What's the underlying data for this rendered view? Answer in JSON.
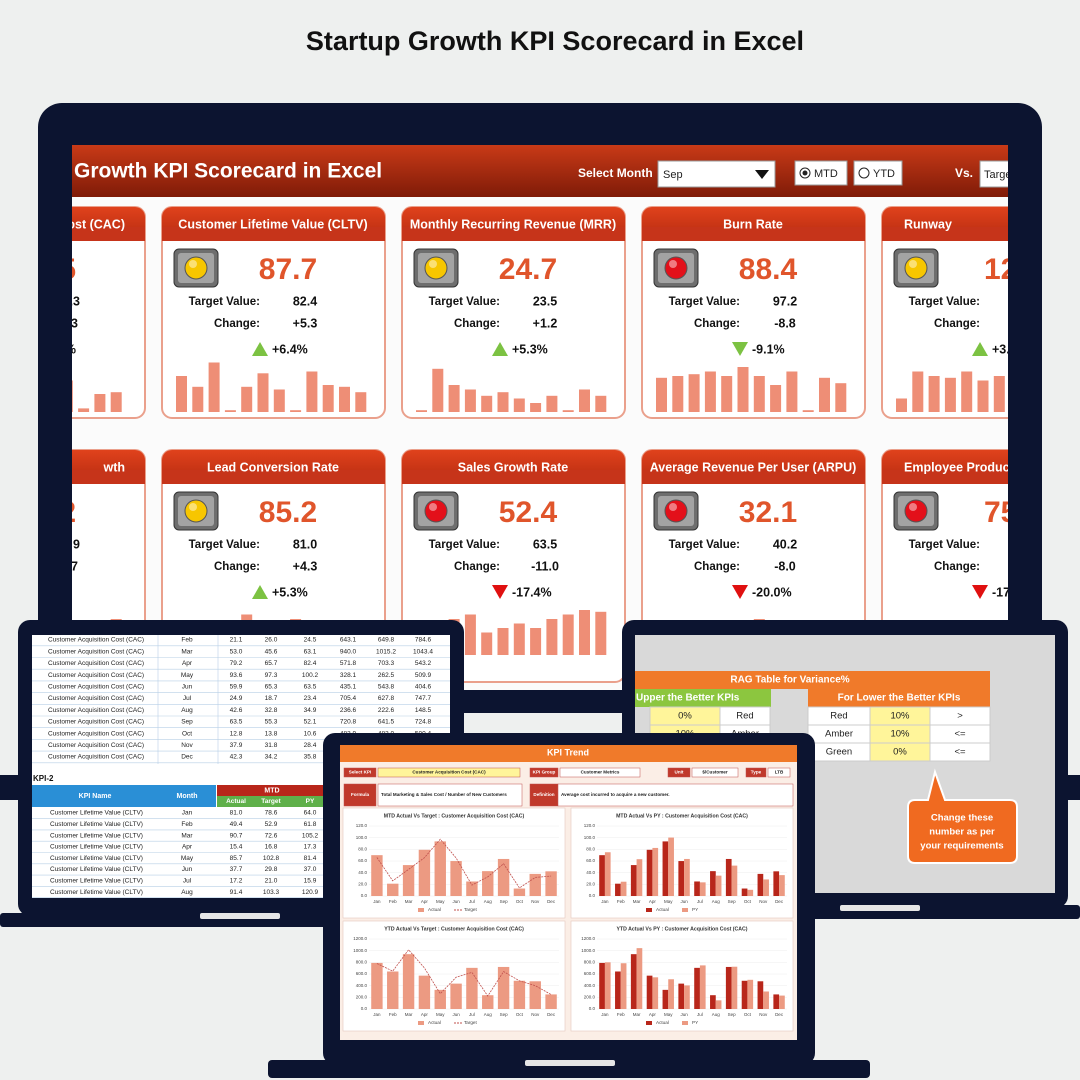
{
  "title": "Startup Growth KPI Scorecard in Excel",
  "dashboard": {
    "title": "Growth KPI Scorecard in Excel",
    "select_month_label": "Select Month",
    "month": "Sep",
    "mtd": "MTD",
    "ytd": "YTD",
    "vs_label": "Vs.",
    "vs_value": "Targe",
    "target_label": "Target Value:",
    "change_label": "Change:",
    "rows": [
      [
        {
          "name": "ost (CAC)",
          "value": "5",
          "target": ".3",
          "change": "3",
          "change_pct": "%",
          "trend": [
            30,
            35,
            4,
            20,
            22
          ]
        },
        {
          "name": "Customer Lifetime Value (CLTV)",
          "status": "amber",
          "value": "87.7",
          "target": "82.4",
          "change": "+5.3",
          "change_pct": "+6.4%",
          "direction": "up",
          "good": true,
          "trend": [
            40,
            28,
            55,
            2,
            28,
            43,
            25,
            2,
            45,
            30,
            28,
            22
          ]
        },
        {
          "name": "Monthly Recurring Revenue (MRR)",
          "status": "amber",
          "value": "24.7",
          "target": "23.5",
          "change": "+1.2",
          "change_pct": "+5.3%",
          "direction": "up",
          "good": true,
          "trend": [
            2,
            48,
            30,
            25,
            18,
            22,
            15,
            10,
            18,
            2,
            25,
            18
          ]
        },
        {
          "name": "Burn Rate",
          "status": "red",
          "value": "88.4",
          "target": "97.2",
          "change": "-8.8",
          "change_pct": "-9.1%",
          "direction": "down",
          "good": true,
          "trend": [
            38,
            40,
            42,
            45,
            40,
            50,
            40,
            30,
            45,
            2,
            38,
            32
          ]
        },
        {
          "name": "Runway",
          "status": "amber",
          "value": "12",
          "change_pct": "+3.",
          "direction": "up",
          "good": true,
          "trend": [
            15,
            45,
            40,
            38,
            45,
            35,
            40
          ]
        }
      ],
      [
        {
          "name": "wth",
          "value": "2",
          "target": "9",
          "change": "7",
          "trend": [
            20,
            25,
            30,
            35,
            40
          ]
        },
        {
          "name": "Lead Conversion Rate",
          "status": "amber",
          "value": "85.2",
          "target": "81.0",
          "change": "+4.3",
          "change_pct": "+5.3%",
          "direction": "up",
          "good": true,
          "trend": [
            30,
            20,
            35,
            25,
            45,
            30,
            25,
            40,
            30,
            20,
            35,
            30
          ]
        },
        {
          "name": "Sales Growth Rate",
          "status": "red",
          "value": "52.4",
          "target": "63.5",
          "change": "-11.0",
          "change_pct": "-17.4%",
          "direction": "down",
          "good": false,
          "trend": [
            15,
            20,
            40,
            45,
            25,
            30,
            35,
            30,
            40,
            45,
            50,
            48
          ]
        },
        {
          "name": "Average Revenue Per User (ARPU)",
          "status": "red",
          "value": "32.1",
          "target": "40.2",
          "change": "-8.0",
          "change_pct": "-20.0%",
          "direction": "down",
          "good": false,
          "trend": [
            25,
            30,
            20,
            35,
            30,
            25,
            40,
            30,
            25,
            35,
            30,
            28
          ]
        },
        {
          "name": "Employee Producti",
          "status": "red",
          "value": "75",
          "change_pct": "-17",
          "direction": "down",
          "good": false,
          "trend": [
            30,
            25,
            35,
            30,
            25,
            30,
            28
          ]
        }
      ]
    ]
  },
  "kpi1": {
    "rows": [
      [
        "Customer Acquisition Cost (CAC)",
        "Feb",
        "21.1",
        "26.0",
        "24.5",
        "643.1",
        "649.8",
        "784.6"
      ],
      [
        "Customer Acquisition Cost (CAC)",
        "Mar",
        "53.0",
        "45.6",
        "63.1",
        "940.0",
        "1015.2",
        "1043.4"
      ],
      [
        "Customer Acquisition Cost (CAC)",
        "Apr",
        "79.2",
        "65.7",
        "82.4",
        "571.8",
        "703.3",
        "543.2"
      ],
      [
        "Customer Acquisition Cost (CAC)",
        "May",
        "93.6",
        "97.3",
        "100.2",
        "328.1",
        "262.5",
        "509.9"
      ],
      [
        "Customer Acquisition Cost (CAC)",
        "Jun",
        "59.9",
        "65.3",
        "63.5",
        "435.1",
        "543.8",
        "404.6"
      ],
      [
        "Customer Acquisition Cost (CAC)",
        "Jul",
        "24.9",
        "18.7",
        "23.4",
        "705.4",
        "627.8",
        "747.7"
      ],
      [
        "Customer Acquisition Cost (CAC)",
        "Aug",
        "42.6",
        "32.8",
        "34.9",
        "236.6",
        "222.6",
        "148.5"
      ],
      [
        "Customer Acquisition Cost (CAC)",
        "Sep",
        "63.5",
        "55.3",
        "52.1",
        "720.8",
        "641.5",
        "724.8"
      ],
      [
        "Customer Acquisition Cost (CAC)",
        "Oct",
        "12.8",
        "13.8",
        "10.6",
        "483.9",
        "483.0",
        "500.4"
      ],
      [
        "Customer Acquisition Cost (CAC)",
        "Nov",
        "37.9",
        "31.8",
        "28.4",
        "475.1"
      ],
      [
        "Customer Acquisition Cost (CAC)",
        "Dec",
        "42.3",
        "34.2",
        "35.8"
      ]
    ]
  },
  "kpi2": {
    "label": "KPI-2",
    "headers": [
      "KPI Name",
      "Month"
    ],
    "group": "MTD",
    "subheaders": [
      "Actual",
      "Target",
      "PY"
    ],
    "rows": [
      [
        "Customer Lifetime Value (CLTV)",
        "Jan",
        "81.0",
        "78.6",
        "64.0"
      ],
      [
        "Customer Lifetime Value (CLTV)",
        "Feb",
        "49.4",
        "52.9",
        "61.8"
      ],
      [
        "Customer Lifetime Value (CLTV)",
        "Mar",
        "90.7",
        "72.6",
        "105.2"
      ],
      [
        "Customer Lifetime Value (CLTV)",
        "Apr",
        "15.4",
        "16.8",
        "17.3"
      ],
      [
        "Customer Lifetime Value (CLTV)",
        "May",
        "85.7",
        "102.8",
        "81.4"
      ],
      [
        "Customer Lifetime Value (CLTV)",
        "Jun",
        "37.7",
        "29.8",
        "37.0"
      ],
      [
        "Customer Lifetime Value (CLTV)",
        "Jul",
        "17.2",
        "21.0",
        "15.9"
      ],
      [
        "Customer Lifetime Value (CLTV)",
        "Aug",
        "91.4",
        "103.3",
        "120.9"
      ]
    ]
  },
  "rag": {
    "title": "RAG Table for Variance%",
    "upper_title": "Upper the Better KPIs",
    "upper_rows": [
      [
        "0%",
        "Red"
      ],
      [
        "10%",
        "Amber"
      ]
    ],
    "lower_title": "For Lower the Better KPIs",
    "lower_rows": [
      [
        "Red",
        "10%",
        ">"
      ],
      [
        "Amber",
        "10%",
        "<="
      ],
      [
        "Green",
        "0%",
        "<="
      ]
    ],
    "callout": [
      "Change these",
      "number as per",
      "your requirements"
    ]
  },
  "trend": {
    "title": "KPI Trend",
    "select_kpi_label": "Select KPI",
    "select_kpi": "Customer Acquisition Cost (CAC)",
    "group_label": "KPI Group",
    "group": "Customer Metrics",
    "unit_label": "Unit",
    "unit": "$/Customer",
    "type_label": "Type",
    "type_value": "LTB",
    "formula_label": "Formula",
    "formula": "Total Marketing & Sales Cost / Number of New Customers",
    "definition_label": "Definition",
    "definition": "Average cost incurred to acquire a new customer."
  },
  "chart_data": [
    {
      "type": "bar",
      "title": "MTD Actual Vs Target : Customer Acquisition Cost (CAC)",
      "categories": [
        "Jan",
        "Feb",
        "Mar",
        "Apr",
        "May",
        "Jun",
        "Jul",
        "Aug",
        "Sep",
        "Oct",
        "Nov",
        "Dec"
      ],
      "series": [
        {
          "name": "Actual",
          "color": "#ec9a82",
          "kind": "bar",
          "values": [
            70,
            21.1,
            53.0,
            79.2,
            93.6,
            59.9,
            24.9,
            42.6,
            63.5,
            12.8,
            37.9,
            42.3
          ]
        },
        {
          "name": "Target",
          "color": "#c0504d",
          "kind": "line",
          "values": [
            66,
            26.0,
            45.6,
            65.7,
            97.3,
            65.3,
            18.7,
            32.8,
            55.3,
            13.8,
            31.8,
            34.2
          ]
        }
      ],
      "ylim": [
        0,
        120
      ],
      "yticks": [
        {
          "value": 0,
          "label": "0.0"
        },
        {
          "value": 20,
          "label": "20.0"
        },
        {
          "value": 40,
          "label": "40.0"
        },
        {
          "value": 60,
          "label": "60.0"
        },
        {
          "value": 80,
          "label": "80.0"
        },
        {
          "value": 100,
          "label": "100.0"
        },
        {
          "value": 120,
          "label": "120.0"
        }
      ]
    },
    {
      "type": "bar",
      "title": "MTD Actual Vs PY : Customer Acquisition Cost (CAC)",
      "categories": [
        "Jan",
        "Feb",
        "Mar",
        "Apr",
        "May",
        "Jun",
        "Jul",
        "Aug",
        "Sep",
        "Oct",
        "Nov",
        "Dec"
      ],
      "series": [
        {
          "name": "Actual",
          "color": "#b8261a",
          "kind": "bar",
          "values": [
            70,
            21.1,
            53.0,
            79.2,
            93.6,
            59.9,
            24.9,
            42.6,
            63.5,
            12.8,
            37.9,
            42.3
          ]
        },
        {
          "name": "PY",
          "color": "#ec9a82",
          "kind": "bar",
          "values": [
            75,
            24.5,
            63.1,
            82.4,
            100.2,
            63.5,
            23.4,
            34.9,
            52.1,
            10.6,
            28.4,
            35.8
          ]
        }
      ],
      "ylim": [
        0,
        120
      ],
      "yticks": [
        {
          "value": 0,
          "label": "0.0"
        },
        {
          "value": 20,
          "label": "20.0"
        },
        {
          "value": 40,
          "label": "40.0"
        },
        {
          "value": 60,
          "label": "60.0"
        },
        {
          "value": 80,
          "label": "80.0"
        },
        {
          "value": 100,
          "label": "100.0"
        },
        {
          "value": 120,
          "label": "120.0"
        }
      ]
    },
    {
      "type": "bar",
      "title": "YTD Actual Vs Target : Customer Acquisition Cost (CAC)",
      "categories": [
        "Jan",
        "Feb",
        "Mar",
        "Apr",
        "May",
        "Jun",
        "Jul",
        "Aug",
        "Sep",
        "Oct",
        "Nov",
        "Dec"
      ],
      "series": [
        {
          "name": "Actual",
          "color": "#ec9a82",
          "kind": "bar",
          "values": [
            790,
            643.1,
            940.0,
            571.8,
            328.1,
            435.1,
            705.4,
            236.6,
            720.8,
            483.9,
            475.1,
            250
          ]
        },
        {
          "name": "Target",
          "color": "#c0504d",
          "kind": "line",
          "values": [
            780,
            649.8,
            1015.2,
            703.3,
            262.5,
            543.8,
            627.8,
            222.6,
            641.5,
            483.0,
            400,
            248.7
          ]
        }
      ],
      "ylim": [
        0,
        1200
      ],
      "yticks": [
        {
          "value": 0,
          "label": "0.0"
        },
        {
          "value": 200,
          "label": "200.0"
        },
        {
          "value": 400,
          "label": "400.0"
        },
        {
          "value": 600,
          "label": "600.0"
        },
        {
          "value": 800,
          "label": "800.0"
        },
        {
          "value": 1000,
          "label": "1000.0"
        },
        {
          "value": 1200,
          "label": "1200.0"
        }
      ]
    },
    {
      "type": "bar",
      "title": "YTD Actual Vs PY : Customer Acquisition Cost (CAC)",
      "categories": [
        "Jan",
        "Feb",
        "Mar",
        "Apr",
        "May",
        "Jun",
        "Jul",
        "Aug",
        "Sep",
        "Oct",
        "Nov",
        "Dec"
      ],
      "series": [
        {
          "name": "Actual",
          "color": "#b8261a",
          "kind": "bar",
          "values": [
            790,
            643.1,
            940.0,
            571.8,
            328.1,
            435.1,
            705.4,
            236.6,
            720.8,
            483.9,
            475.1,
            250
          ]
        },
        {
          "name": "PY",
          "color": "#ec9a82",
          "kind": "bar",
          "values": [
            800,
            784.6,
            1043.4,
            543.2,
            509.9,
            404.6,
            747.7,
            148.5,
            724.8,
            500.4,
            300,
            230
          ]
        }
      ],
      "ylim": [
        0,
        1200
      ],
      "yticks": [
        {
          "value": 0,
          "label": "0.0"
        },
        {
          "value": 200,
          "label": "200.0"
        },
        {
          "value": 400,
          "label": "400.0"
        },
        {
          "value": 600,
          "label": "600.0"
        },
        {
          "value": 800,
          "label": "800.0"
        },
        {
          "value": 1000,
          "label": "1000.0"
        },
        {
          "value": 1200,
          "label": "1200.0"
        }
      ]
    }
  ]
}
